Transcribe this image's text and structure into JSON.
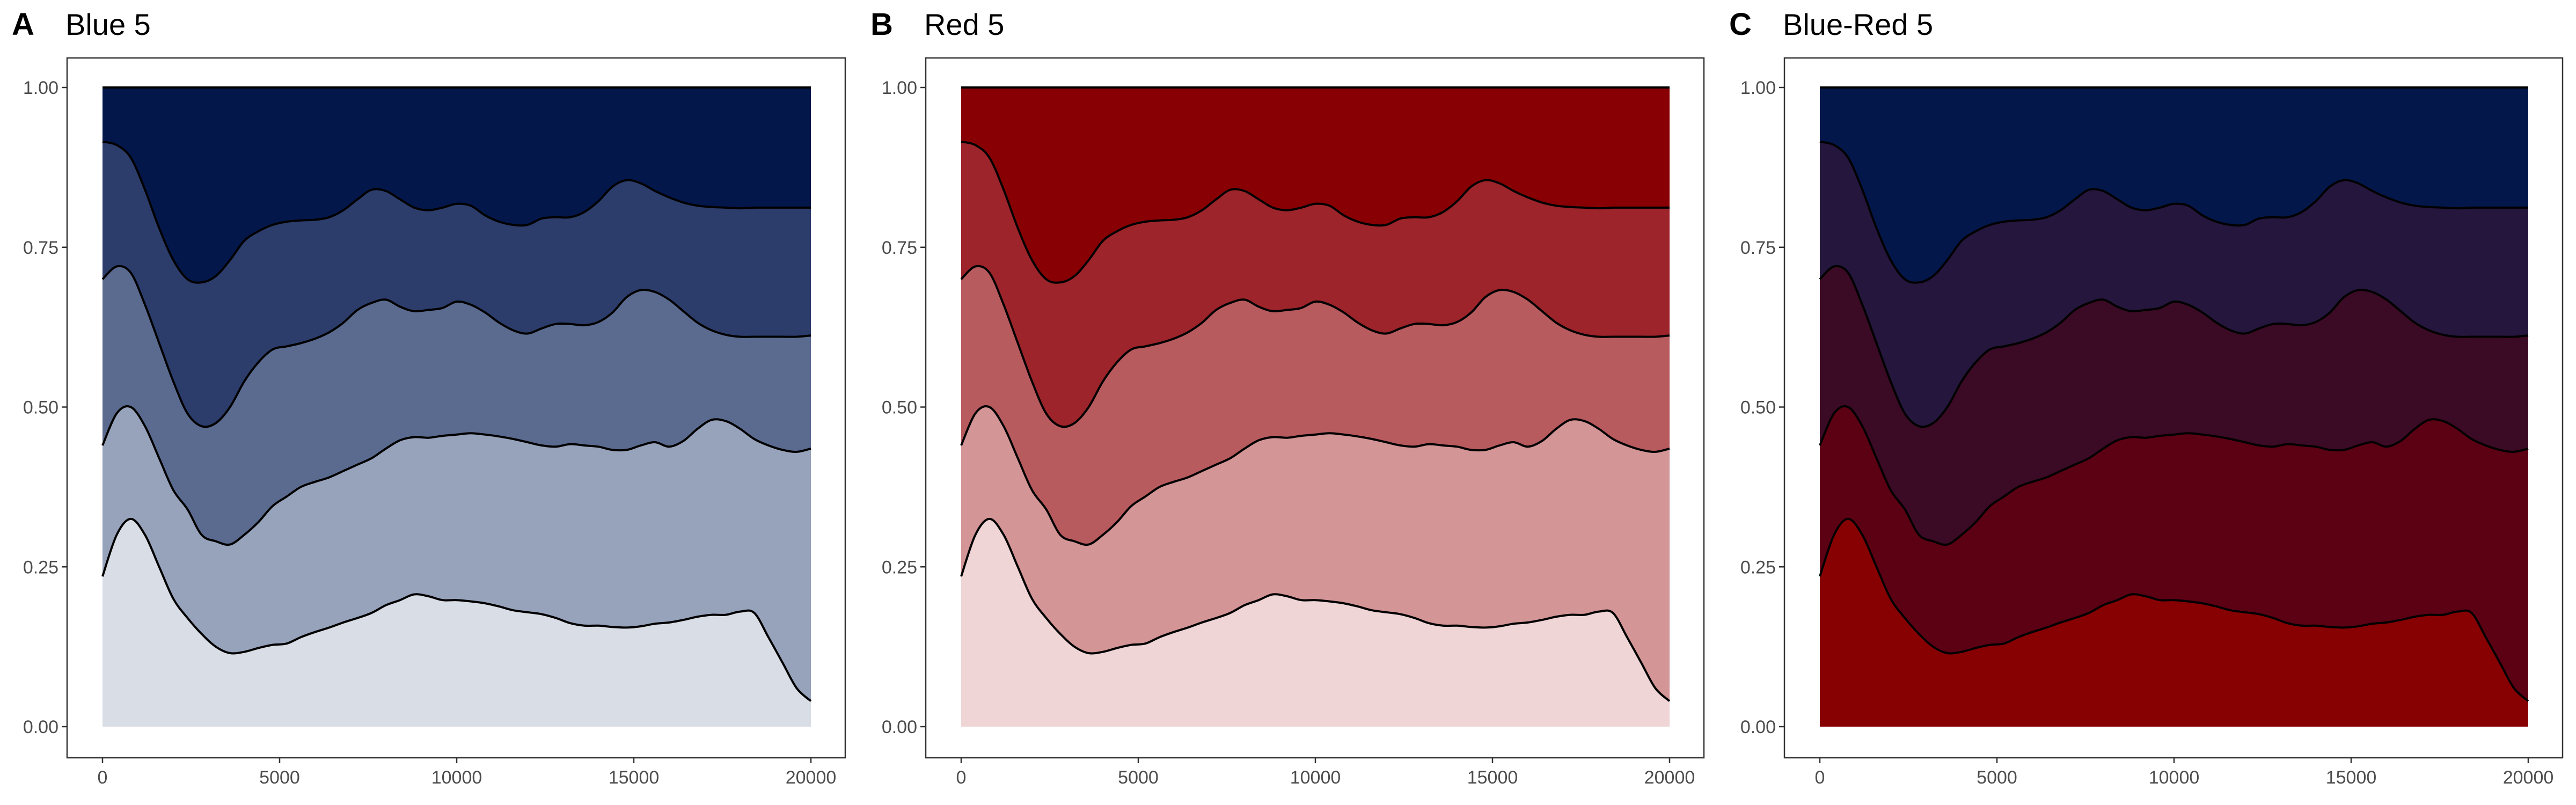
{
  "chart_data": [
    {
      "type": "area",
      "stacking": "fill",
      "panel_letter": "A",
      "title": "Blue 5",
      "x_ticks": [
        "0",
        "5000",
        "10000",
        "15000",
        "20000"
      ],
      "y_ticks": [
        "0.00",
        "0.25",
        "0.50",
        "0.75",
        "1.00"
      ],
      "xlim": [
        0,
        20000
      ],
      "ylim": [
        0,
        1
      ],
      "grid": false,
      "fill_colors": [
        "#d9dde6",
        "#97a2bb",
        "#5b6b90",
        "#2c3d6b",
        "#03174a"
      ]
    },
    {
      "type": "area",
      "stacking": "fill",
      "panel_letter": "B",
      "title": "Red 5",
      "x_ticks": [
        "0",
        "5000",
        "10000",
        "15000",
        "20000"
      ],
      "y_ticks": [
        "0.00",
        "0.25",
        "0.50",
        "0.75",
        "1.00"
      ],
      "xlim": [
        0,
        20000
      ],
      "ylim": [
        0,
        1
      ],
      "grid": false,
      "fill_colors": [
        "#efd5d6",
        "#d39596",
        "#b85b5f",
        "#9c242a",
        "#880003"
      ]
    },
    {
      "type": "area",
      "stacking": "fill",
      "panel_letter": "C",
      "title": "Blue-Red 5",
      "x_ticks": [
        "0",
        "5000",
        "10000",
        "15000",
        "20000"
      ],
      "y_ticks": [
        "0.00",
        "0.25",
        "0.50",
        "0.75",
        "1.00"
      ],
      "xlim": [
        0,
        20000
      ],
      "ylim": [
        0,
        1
      ],
      "grid": false,
      "fill_colors": [
        "#870103",
        "#5c0014",
        "#3b0a25",
        "#25163d",
        "#03174a"
      ]
    }
  ],
  "boundaries": {
    "x": [
      0,
      400,
      800,
      1200,
      1600,
      2000,
      2400,
      2800,
      3200,
      3600,
      4000,
      4400,
      4800,
      5200,
      5600,
      6000,
      6400,
      6800,
      7200,
      7600,
      8000,
      8400,
      8800,
      9200,
      9600,
      10000,
      10400,
      10800,
      11200,
      11600,
      12000,
      12400,
      12800,
      13200,
      13600,
      14000,
      14400,
      14800,
      15200,
      15600,
      16000,
      16400,
      16800,
      17200,
      17600,
      18000,
      18400,
      18800,
      19200,
      19600,
      20000
    ],
    "cumulative": [
      [
        0.235,
        0.3,
        0.325,
        0.3,
        0.25,
        0.2,
        0.17,
        0.145,
        0.125,
        0.115,
        0.117,
        0.123,
        0.128,
        0.13,
        0.14,
        0.148,
        0.155,
        0.163,
        0.17,
        0.178,
        0.19,
        0.198,
        0.207,
        0.204,
        0.198,
        0.198,
        0.196,
        0.193,
        0.188,
        0.182,
        0.179,
        0.176,
        0.17,
        0.162,
        0.158,
        0.158,
        0.156,
        0.155,
        0.157,
        0.161,
        0.163,
        0.167,
        0.172,
        0.175,
        0.175,
        0.18,
        0.178,
        0.14,
        0.1,
        0.06,
        0.04
      ],
      [
        0.44,
        0.49,
        0.5,
        0.47,
        0.42,
        0.37,
        0.34,
        0.3,
        0.29,
        0.285,
        0.3,
        0.32,
        0.345,
        0.36,
        0.375,
        0.383,
        0.39,
        0.4,
        0.41,
        0.42,
        0.435,
        0.448,
        0.453,
        0.452,
        0.455,
        0.457,
        0.459,
        0.457,
        0.454,
        0.45,
        0.445,
        0.44,
        0.438,
        0.442,
        0.44,
        0.438,
        0.433,
        0.433,
        0.44,
        0.445,
        0.438,
        0.447,
        0.466,
        0.48,
        0.478,
        0.466,
        0.45,
        0.44,
        0.433,
        0.43,
        0.435
      ],
      [
        0.7,
        0.72,
        0.71,
        0.66,
        0.6,
        0.54,
        0.49,
        0.47,
        0.475,
        0.5,
        0.54,
        0.57,
        0.59,
        0.595,
        0.6,
        0.607,
        0.617,
        0.632,
        0.652,
        0.663,
        0.668,
        0.657,
        0.65,
        0.652,
        0.655,
        0.665,
        0.66,
        0.648,
        0.632,
        0.62,
        0.615,
        0.623,
        0.63,
        0.63,
        0.628,
        0.633,
        0.648,
        0.672,
        0.683,
        0.68,
        0.668,
        0.65,
        0.632,
        0.62,
        0.613,
        0.61,
        0.61,
        0.61,
        0.61,
        0.61,
        0.612
      ],
      [
        0.915,
        0.91,
        0.89,
        0.84,
        0.78,
        0.73,
        0.7,
        0.695,
        0.705,
        0.73,
        0.76,
        0.775,
        0.785,
        0.79,
        0.792,
        0.793,
        0.797,
        0.808,
        0.825,
        0.84,
        0.838,
        0.825,
        0.812,
        0.808,
        0.812,
        0.818,
        0.815,
        0.8,
        0.79,
        0.785,
        0.785,
        0.795,
        0.797,
        0.797,
        0.805,
        0.822,
        0.845,
        0.855,
        0.85,
        0.838,
        0.828,
        0.82,
        0.815,
        0.813,
        0.812,
        0.811,
        0.812,
        0.812,
        0.812,
        0.812,
        0.812
      ],
      [
        1,
        1,
        1,
        1,
        1,
        1,
        1,
        1,
        1,
        1,
        1,
        1,
        1,
        1,
        1,
        1,
        1,
        1,
        1,
        1,
        1,
        1,
        1,
        1,
        1,
        1,
        1,
        1,
        1,
        1,
        1,
        1,
        1,
        1,
        1,
        1,
        1,
        1,
        1,
        1,
        1,
        1,
        1,
        1,
        1,
        1,
        1,
        1,
        1,
        1,
        1
      ]
    ]
  }
}
